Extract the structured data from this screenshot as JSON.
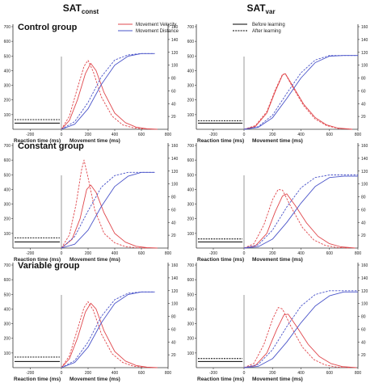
{
  "columns": [
    {
      "base": "SAT",
      "sub": "const"
    },
    {
      "base": "SAT",
      "sub": "var"
    }
  ],
  "legend": {
    "velocity": "Movement Velocity",
    "distance": "Movement Distance",
    "before": "Before learning",
    "after": "After learning"
  },
  "colors": {
    "velocity": "#e0474c",
    "distance": "#4a54c9",
    "reaction": "#000000"
  },
  "axes": {
    "reaction_label": "Reaction time (ms)",
    "movement_label": "Movement time (ms)",
    "left_ticks": [
      "100",
      "200",
      "300",
      "400",
      "500",
      "600",
      "700"
    ],
    "right_ticks": [
      "20",
      "40",
      "60",
      "80",
      "100",
      "120",
      "140",
      "160"
    ],
    "reaction_ticks": [
      "-200",
      "0"
    ],
    "movement_ticks": [
      "200",
      "400",
      "600",
      "800"
    ]
  },
  "chart_data": [
    {
      "type": "line",
      "group": "Control group",
      "column": "SATconst",
      "reaction_time_ms": {
        "before": [
          -300,
          -10,
          42
        ],
        "after": [
          -300,
          -10,
          66
        ]
      },
      "velocity": {
        "unit": "left axis",
        "ylim": [
          0,
          700
        ],
        "before": {
          "x": [
            0,
            60,
            120,
            180,
            220,
            260,
            320,
            400,
            480,
            560,
            640,
            720
          ],
          "y": [
            0,
            60,
            200,
            380,
            450,
            400,
            250,
            110,
            45,
            15,
            4,
            0
          ]
        },
        "after": {
          "x": [
            0,
            60,
            120,
            170,
            200,
            240,
            300,
            380,
            460,
            540,
            620,
            700
          ],
          "y": [
            0,
            90,
            280,
            430,
            470,
            390,
            220,
            90,
            30,
            10,
            2,
            0
          ]
        }
      },
      "distance": {
        "unit": "right axis",
        "ylim": [
          0,
          160
        ],
        "before": {
          "x": [
            0,
            100,
            200,
            300,
            400,
            500,
            600,
            700
          ],
          "y": [
            0,
            8,
            32,
            70,
            100,
            114,
            118,
            118
          ]
        },
        "after": {
          "x": [
            0,
            100,
            200,
            300,
            400,
            500,
            600,
            700
          ],
          "y": [
            0,
            12,
            42,
            82,
            108,
            116,
            118,
            118
          ]
        }
      }
    },
    {
      "type": "line",
      "group": "Control group",
      "column": "SATvar",
      "reaction_time_ms": {
        "before": [
          -300,
          -10,
          42
        ],
        "after": [
          -300,
          -10,
          58
        ]
      },
      "velocity": {
        "unit": "left axis",
        "ylim": [
          0,
          700
        ],
        "before": {
          "x": [
            0,
            80,
            160,
            220,
            270,
            290,
            340,
            420,
            500,
            580,
            660,
            760
          ],
          "y": [
            0,
            20,
            110,
            260,
            370,
            380,
            300,
            170,
            80,
            30,
            8,
            0
          ]
        },
        "after": {
          "x": [
            0,
            80,
            160,
            220,
            270,
            290,
            340,
            420,
            500,
            580,
            660,
            760
          ],
          "y": [
            0,
            25,
            120,
            270,
            375,
            378,
            290,
            160,
            70,
            25,
            6,
            0
          ]
        }
      },
      "distance": {
        "unit": "right axis",
        "ylim": [
          0,
          160
        ],
        "before": {
          "x": [
            0,
            100,
            200,
            300,
            400,
            500,
            600,
            700,
            800
          ],
          "y": [
            0,
            3,
            18,
            48,
            80,
            104,
            114,
            115,
            115
          ]
        },
        "after": {
          "x": [
            0,
            100,
            200,
            300,
            400,
            500,
            600,
            700,
            800
          ],
          "y": [
            0,
            4,
            22,
            56,
            88,
            108,
            115,
            115,
            115
          ]
        }
      }
    },
    {
      "type": "line",
      "group": "Constant group",
      "column": "SATconst",
      "reaction_time_ms": {
        "before": [
          -300,
          -10,
          42
        ],
        "after": [
          -300,
          -10,
          70
        ]
      },
      "velocity": {
        "unit": "left axis",
        "ylim": [
          0,
          700
        ],
        "before": {
          "x": [
            0,
            80,
            140,
            190,
            220,
            260,
            320,
            400,
            480,
            560,
            640,
            720
          ],
          "y": [
            0,
            60,
            200,
            400,
            430,
            380,
            240,
            100,
            40,
            12,
            3,
            0
          ]
        },
        "after": {
          "x": [
            0,
            60,
            110,
            150,
            170,
            200,
            250,
            320,
            400,
            480,
            560,
            640
          ],
          "y": [
            0,
            90,
            300,
            530,
            600,
            480,
            260,
            100,
            35,
            10,
            2,
            0
          ]
        }
      },
      "distance": {
        "unit": "right axis",
        "ylim": [
          0,
          160
        ],
        "before": {
          "x": [
            0,
            100,
            200,
            300,
            400,
            500,
            600,
            700
          ],
          "y": [
            0,
            6,
            28,
            65,
            96,
            112,
            118,
            118
          ]
        },
        "after": {
          "x": [
            0,
            100,
            200,
            300,
            400,
            500,
            600,
            700
          ],
          "y": [
            0,
            18,
            58,
            95,
            113,
            118,
            118,
            118
          ]
        }
      }
    },
    {
      "type": "line",
      "group": "Constant group",
      "column": "SATvar",
      "reaction_time_ms": {
        "before": [
          -300,
          -10,
          42
        ],
        "after": [
          -300,
          -10,
          62
        ]
      },
      "velocity": {
        "unit": "left axis",
        "ylim": [
          0,
          700
        ],
        "before": {
          "x": [
            0,
            80,
            160,
            220,
            270,
            300,
            360,
            440,
            520,
            600,
            680,
            780
          ],
          "y": [
            0,
            15,
            100,
            250,
            355,
            370,
            290,
            170,
            80,
            30,
            8,
            0
          ]
        },
        "after": {
          "x": [
            0,
            70,
            140,
            200,
            240,
            270,
            330,
            410,
            490,
            570,
            650,
            740
          ],
          "y": [
            0,
            30,
            160,
            330,
            400,
            395,
            280,
            140,
            55,
            18,
            4,
            0
          ]
        }
      },
      "distance": {
        "unit": "right axis",
        "ylim": [
          0,
          160
        ],
        "before": {
          "x": [
            0,
            100,
            200,
            300,
            400,
            500,
            600,
            700,
            800
          ],
          "y": [
            0,
            2,
            14,
            40,
            70,
            96,
            110,
            112,
            112
          ]
        },
        "after": {
          "x": [
            0,
            100,
            200,
            300,
            400,
            500,
            600,
            700,
            800
          ],
          "y": [
            0,
            5,
            28,
            64,
            94,
            110,
            114,
            114,
            114
          ]
        }
      }
    },
    {
      "type": "line",
      "group": "Variable group",
      "column": "SATconst",
      "reaction_time_ms": {
        "before": [
          -300,
          -10,
          42
        ],
        "after": [
          -300,
          -10,
          72
        ]
      },
      "velocity": {
        "unit": "left axis",
        "ylim": [
          0,
          700
        ],
        "before": {
          "x": [
            0,
            60,
            120,
            180,
            220,
            260,
            320,
            400,
            480,
            560,
            640,
            720
          ],
          "y": [
            0,
            60,
            200,
            380,
            440,
            400,
            250,
            110,
            45,
            15,
            4,
            0
          ]
        },
        "after": {
          "x": [
            0,
            60,
            120,
            170,
            200,
            240,
            300,
            380,
            460,
            540,
            620,
            700
          ],
          "y": [
            0,
            80,
            260,
            410,
            450,
            390,
            230,
            95,
            35,
            10,
            2,
            0
          ]
        }
      },
      "distance": {
        "unit": "right axis",
        "ylim": [
          0,
          160
        ],
        "before": {
          "x": [
            0,
            100,
            200,
            300,
            400,
            500,
            600,
            700
          ],
          "y": [
            0,
            8,
            32,
            70,
            100,
            114,
            118,
            118
          ]
        },
        "after": {
          "x": [
            0,
            100,
            200,
            300,
            400,
            500,
            600,
            700
          ],
          "y": [
            0,
            11,
            40,
            80,
            106,
            116,
            118,
            118
          ]
        }
      }
    },
    {
      "type": "line",
      "group": "Variable group",
      "column": "SATvar",
      "reaction_time_ms": {
        "before": [
          -300,
          -10,
          42
        ],
        "after": [
          -300,
          -10,
          62
        ]
      },
      "velocity": {
        "unit": "left axis",
        "ylim": [
          0,
          700
        ],
        "before": {
          "x": [
            0,
            80,
            160,
            230,
            280,
            310,
            370,
            450,
            530,
            610,
            690,
            790
          ],
          "y": [
            0,
            15,
            100,
            260,
            360,
            365,
            280,
            160,
            75,
            28,
            7,
            0
          ]
        },
        "after": {
          "x": [
            0,
            70,
            140,
            200,
            240,
            270,
            330,
            410,
            490,
            570,
            650,
            740
          ],
          "y": [
            0,
            30,
            160,
            330,
            410,
            400,
            280,
            140,
            55,
            18,
            4,
            0
          ]
        }
      },
      "distance": {
        "unit": "right axis",
        "ylim": [
          0,
          160
        ],
        "before": {
          "x": [
            0,
            100,
            200,
            300,
            400,
            500,
            600,
            700,
            800
          ],
          "y": [
            0,
            2,
            14,
            40,
            70,
            96,
            112,
            118,
            118
          ]
        },
        "after": {
          "x": [
            0,
            100,
            200,
            300,
            400,
            500,
            600,
            700,
            800
          ],
          "y": [
            0,
            5,
            28,
            64,
            96,
            114,
            120,
            120,
            120
          ]
        }
      }
    }
  ]
}
